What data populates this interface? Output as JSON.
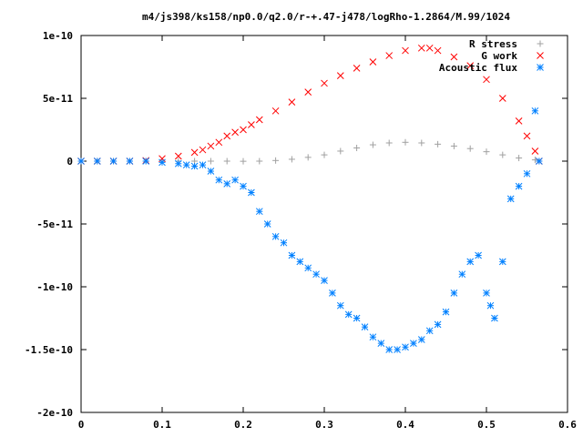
{
  "chart_data": {
    "type": "scatter",
    "title": "m4/js398/ks158/np0.0/q2.0/r-+.47-j478/logRho-1.2864/M.99/1024",
    "xlabel": "",
    "ylabel": "",
    "xlim": [
      0,
      0.6
    ],
    "ylim": [
      -2e-10,
      1e-10
    ],
    "grid": false,
    "legend_position": "top-right",
    "x_ticks": [
      "0",
      "0.1",
      "0.2",
      "0.3",
      "0.4",
      "0.5",
      "0.6"
    ],
    "y_ticks": [
      "1e-10",
      "5e-11",
      "0",
      "-5e-11",
      "-1e-10",
      "-1.5e-10",
      "-2e-10"
    ],
    "series": [
      {
        "name": "R stress",
        "marker": "plus",
        "color": "#a0a0a0",
        "x": [
          0.0,
          0.02,
          0.04,
          0.06,
          0.08,
          0.1,
          0.12,
          0.14,
          0.16,
          0.18,
          0.2,
          0.22,
          0.24,
          0.26,
          0.28,
          0.3,
          0.32,
          0.34,
          0.36,
          0.38,
          0.4,
          0.42,
          0.44,
          0.46,
          0.48,
          0.5,
          0.52,
          0.54,
          0.56,
          0.565
        ],
        "y": [
          0,
          0,
          0,
          0,
          0,
          0,
          0,
          0,
          0,
          0,
          -1e-13,
          0,
          5e-13,
          1.5e-12,
          3e-12,
          5e-12,
          8e-12,
          1.05e-11,
          1.3e-11,
          1.45e-11,
          1.5e-11,
          1.45e-11,
          1.35e-11,
          1.2e-11,
          1e-11,
          7.5e-12,
          5e-12,
          2.5e-12,
          1e-12,
          0
        ]
      },
      {
        "name": "G work",
        "marker": "cross",
        "color": "#ff0000",
        "x": [
          0.0,
          0.02,
          0.04,
          0.06,
          0.08,
          0.1,
          0.12,
          0.14,
          0.15,
          0.16,
          0.17,
          0.18,
          0.19,
          0.2,
          0.21,
          0.22,
          0.24,
          0.26,
          0.28,
          0.3,
          0.32,
          0.34,
          0.36,
          0.38,
          0.4,
          0.42,
          0.43,
          0.44,
          0.46,
          0.48,
          0.5,
          0.52,
          0.54,
          0.55,
          0.56,
          0.565
        ],
        "y": [
          0,
          0,
          0,
          0,
          5e-13,
          2e-12,
          4e-12,
          7e-12,
          9e-12,
          1.2e-11,
          1.5e-11,
          2e-11,
          2.3e-11,
          2.5e-11,
          2.9e-11,
          3.3e-11,
          4e-11,
          4.7e-11,
          5.5e-11,
          6.2e-11,
          6.8e-11,
          7.4e-11,
          7.9e-11,
          8.4e-11,
          8.8e-11,
          9e-11,
          9e-11,
          8.8e-11,
          8.3e-11,
          7.6e-11,
          6.5e-11,
          5e-11,
          3.2e-11,
          2e-11,
          8e-12,
          0
        ]
      },
      {
        "name": "Acoustic flux",
        "marker": "star",
        "color": "#0080ff",
        "x": [
          0.0,
          0.02,
          0.04,
          0.06,
          0.08,
          0.1,
          0.12,
          0.13,
          0.14,
          0.15,
          0.16,
          0.17,
          0.18,
          0.19,
          0.2,
          0.21,
          0.22,
          0.23,
          0.24,
          0.25,
          0.26,
          0.27,
          0.28,
          0.29,
          0.3,
          0.31,
          0.32,
          0.33,
          0.34,
          0.35,
          0.36,
          0.37,
          0.38,
          0.39,
          0.4,
          0.41,
          0.42,
          0.43,
          0.44,
          0.45,
          0.46,
          0.47,
          0.48,
          0.49,
          0.5,
          0.505,
          0.51,
          0.52,
          0.53,
          0.54,
          0.55,
          0.56,
          0.565
        ],
        "y": [
          0,
          0,
          0,
          0,
          0,
          -1e-12,
          -2e-12,
          -3e-12,
          -4e-12,
          -3e-12,
          -8e-12,
          -1.5e-11,
          -1.8e-11,
          -1.5e-11,
          -2e-11,
          -2.5e-11,
          -4e-11,
          -5e-11,
          -6e-11,
          -6.5e-11,
          -7.5e-11,
          -8e-11,
          -8.5e-11,
          -9e-11,
          -9.5e-11,
          -1.05e-10,
          -1.15e-10,
          -1.22e-10,
          -1.25e-10,
          -1.32e-10,
          -1.4e-10,
          -1.45e-10,
          -1.5e-10,
          -1.5e-10,
          -1.48e-10,
          -1.45e-10,
          -1.42e-10,
          -1.35e-10,
          -1.3e-10,
          -1.2e-10,
          -1.05e-10,
          -9e-11,
          -8e-11,
          -7.5e-11,
          -1.05e-10,
          -1.15e-10,
          -1.25e-10,
          -8e-11,
          -3e-11,
          -2e-11,
          -1e-11,
          4e-11,
          0
        ]
      }
    ]
  }
}
